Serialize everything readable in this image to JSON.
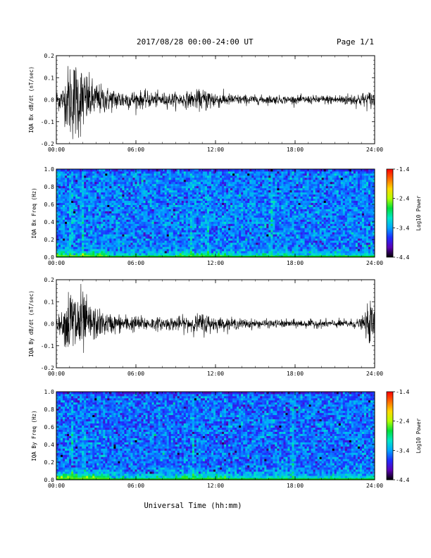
{
  "header": {
    "title": "2017/08/28  00:00-24:00 UT",
    "page": "Page 1/1"
  },
  "xlabel": "Universal Time (hh:mm)",
  "x_ticks": [
    "00:00",
    "06:00",
    "12:00",
    "18:00",
    "24:00"
  ],
  "colorscale": {
    "label": "Log10 Power",
    "ticks": [
      "-1.4",
      "-2.4",
      "-3.4",
      "-4.4"
    ],
    "colors": [
      "#000000",
      "#5a00b4",
      "#1e2cff",
      "#00a6ff",
      "#00e6c8",
      "#00e03a",
      "#b4ff00",
      "#ffd800",
      "#ff6a00",
      "#ff0000"
    ]
  },
  "chart_data": [
    {
      "type": "line",
      "ylabel": "IQA Bx dB/dt (nT/sec)",
      "ylim": [
        -0.2,
        0.2
      ],
      "y_ticks": [
        "0.2",
        "0.1",
        "0.0",
        "-0.1",
        "-0.2"
      ],
      "xlim": [
        0,
        24
      ],
      "x_unit": "hours UT",
      "envelope": {
        "x": [
          0,
          0.5,
          1,
          1.5,
          2,
          2.5,
          3,
          3.5,
          4,
          5,
          6,
          7,
          8,
          9,
          10,
          10.5,
          11,
          11.5,
          12,
          12.5,
          13,
          14,
          15,
          16,
          17,
          18,
          19,
          20,
          21,
          22,
          23,
          23.8,
          24
        ],
        "amp": [
          0.05,
          0.07,
          0.2,
          0.2,
          0.17,
          0.11,
          0.09,
          0.07,
          0.06,
          0.05,
          0.045,
          0.04,
          0.035,
          0.035,
          0.04,
          0.045,
          0.05,
          0.06,
          0.045,
          0.035,
          0.03,
          0.025,
          0.022,
          0.022,
          0.02,
          0.02,
          0.02,
          0.022,
          0.025,
          0.03,
          0.035,
          0.045,
          0.05
        ]
      }
    },
    {
      "type": "heatmap",
      "ylabel": "IQA Bx Freq (Hz)",
      "ylim": [
        0,
        1.0
      ],
      "y_ticks": [
        "1.0",
        "0.8",
        "0.6",
        "0.4",
        "0.2",
        "0.0"
      ],
      "xlim": [
        0,
        24
      ],
      "zlim": [
        -4.4,
        -1.4
      ],
      "z_label": "Log10 Power",
      "background_level": -3.5,
      "low_freq_enhancement_below_hz": 0.12,
      "vertical_streaks_hours": [
        1.1,
        2.0,
        10.2,
        11.4,
        16.2
      ]
    },
    {
      "type": "line",
      "ylabel": "IQA By dB/dt (nT/sec)",
      "ylim": [
        -0.2,
        0.2
      ],
      "y_ticks": [
        "0.2",
        "0.1",
        "0.0",
        "-0.1",
        "-0.2"
      ],
      "xlim": [
        0,
        24
      ],
      "x_unit": "hours UT",
      "envelope": {
        "x": [
          0,
          0.5,
          1,
          1.5,
          2,
          2.5,
          3,
          3.5,
          4,
          5,
          6,
          7,
          8,
          9,
          10,
          10.5,
          11,
          11.5,
          12,
          12.5,
          13,
          14,
          15,
          16,
          17,
          18,
          19,
          20,
          21,
          22,
          23,
          23.8,
          24
        ],
        "amp": [
          0.03,
          0.06,
          0.2,
          0.2,
          0.16,
          0.1,
          0.08,
          0.06,
          0.05,
          0.045,
          0.04,
          0.035,
          0.03,
          0.035,
          0.04,
          0.045,
          0.055,
          0.05,
          0.035,
          0.03,
          0.028,
          0.025,
          0.022,
          0.02,
          0.02,
          0.02,
          0.02,
          0.02,
          0.02,
          0.022,
          0.025,
          0.12,
          0.06
        ]
      }
    },
    {
      "type": "heatmap",
      "ylabel": "IQA By Freq (Hz)",
      "ylim": [
        0,
        1.0
      ],
      "y_ticks": [
        "1.0",
        "0.8",
        "0.6",
        "0.4",
        "0.2",
        "0.0"
      ],
      "xlim": [
        0,
        24
      ],
      "zlim": [
        -4.4,
        -1.4
      ],
      "z_label": "Log10 Power",
      "background_level": -3.55,
      "low_freq_enhancement_below_hz": 0.15,
      "vertical_streaks_hours": [
        1.2,
        2.1,
        10.3,
        17.8
      ]
    }
  ]
}
